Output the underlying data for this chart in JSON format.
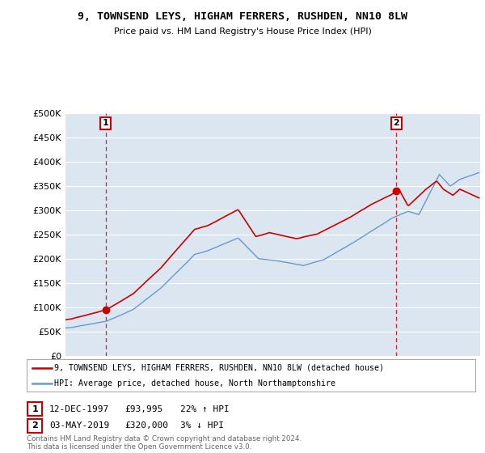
{
  "title": "9, TOWNSEND LEYS, HIGHAM FERRERS, RUSHDEN, NN10 8LW",
  "subtitle": "Price paid vs. HM Land Registry's House Price Index (HPI)",
  "background_color": "#ffffff",
  "plot_bg_color": "#dce6f1",
  "grid_color": "#ffffff",
  "line1_color": "#cc0000",
  "line2_color": "#6699cc",
  "ylim": [
    0,
    500000
  ],
  "yticks": [
    0,
    50000,
    100000,
    150000,
    200000,
    250000,
    300000,
    350000,
    400000,
    450000,
    500000
  ],
  "sale1_year": 1997.95,
  "sale1_price": 93995,
  "sale2_year": 2019.34,
  "sale2_price": 320000,
  "legend1": "9, TOWNSEND LEYS, HIGHAM FERRERS, RUSHDEN, NN10 8LW (detached house)",
  "legend2": "HPI: Average price, detached house, North Northamptonshire",
  "table_row1": [
    "1",
    "12-DEC-1997",
    "£93,995",
    "22% ↑ HPI"
  ],
  "table_row2": [
    "2",
    "03-MAY-2019",
    "£320,000",
    "3% ↓ HPI"
  ],
  "footer": "Contains HM Land Registry data © Crown copyright and database right 2024.\nThis data is licensed under the Open Government Licence v3.0.",
  "xmin": 1995,
  "xmax": 2025.5
}
